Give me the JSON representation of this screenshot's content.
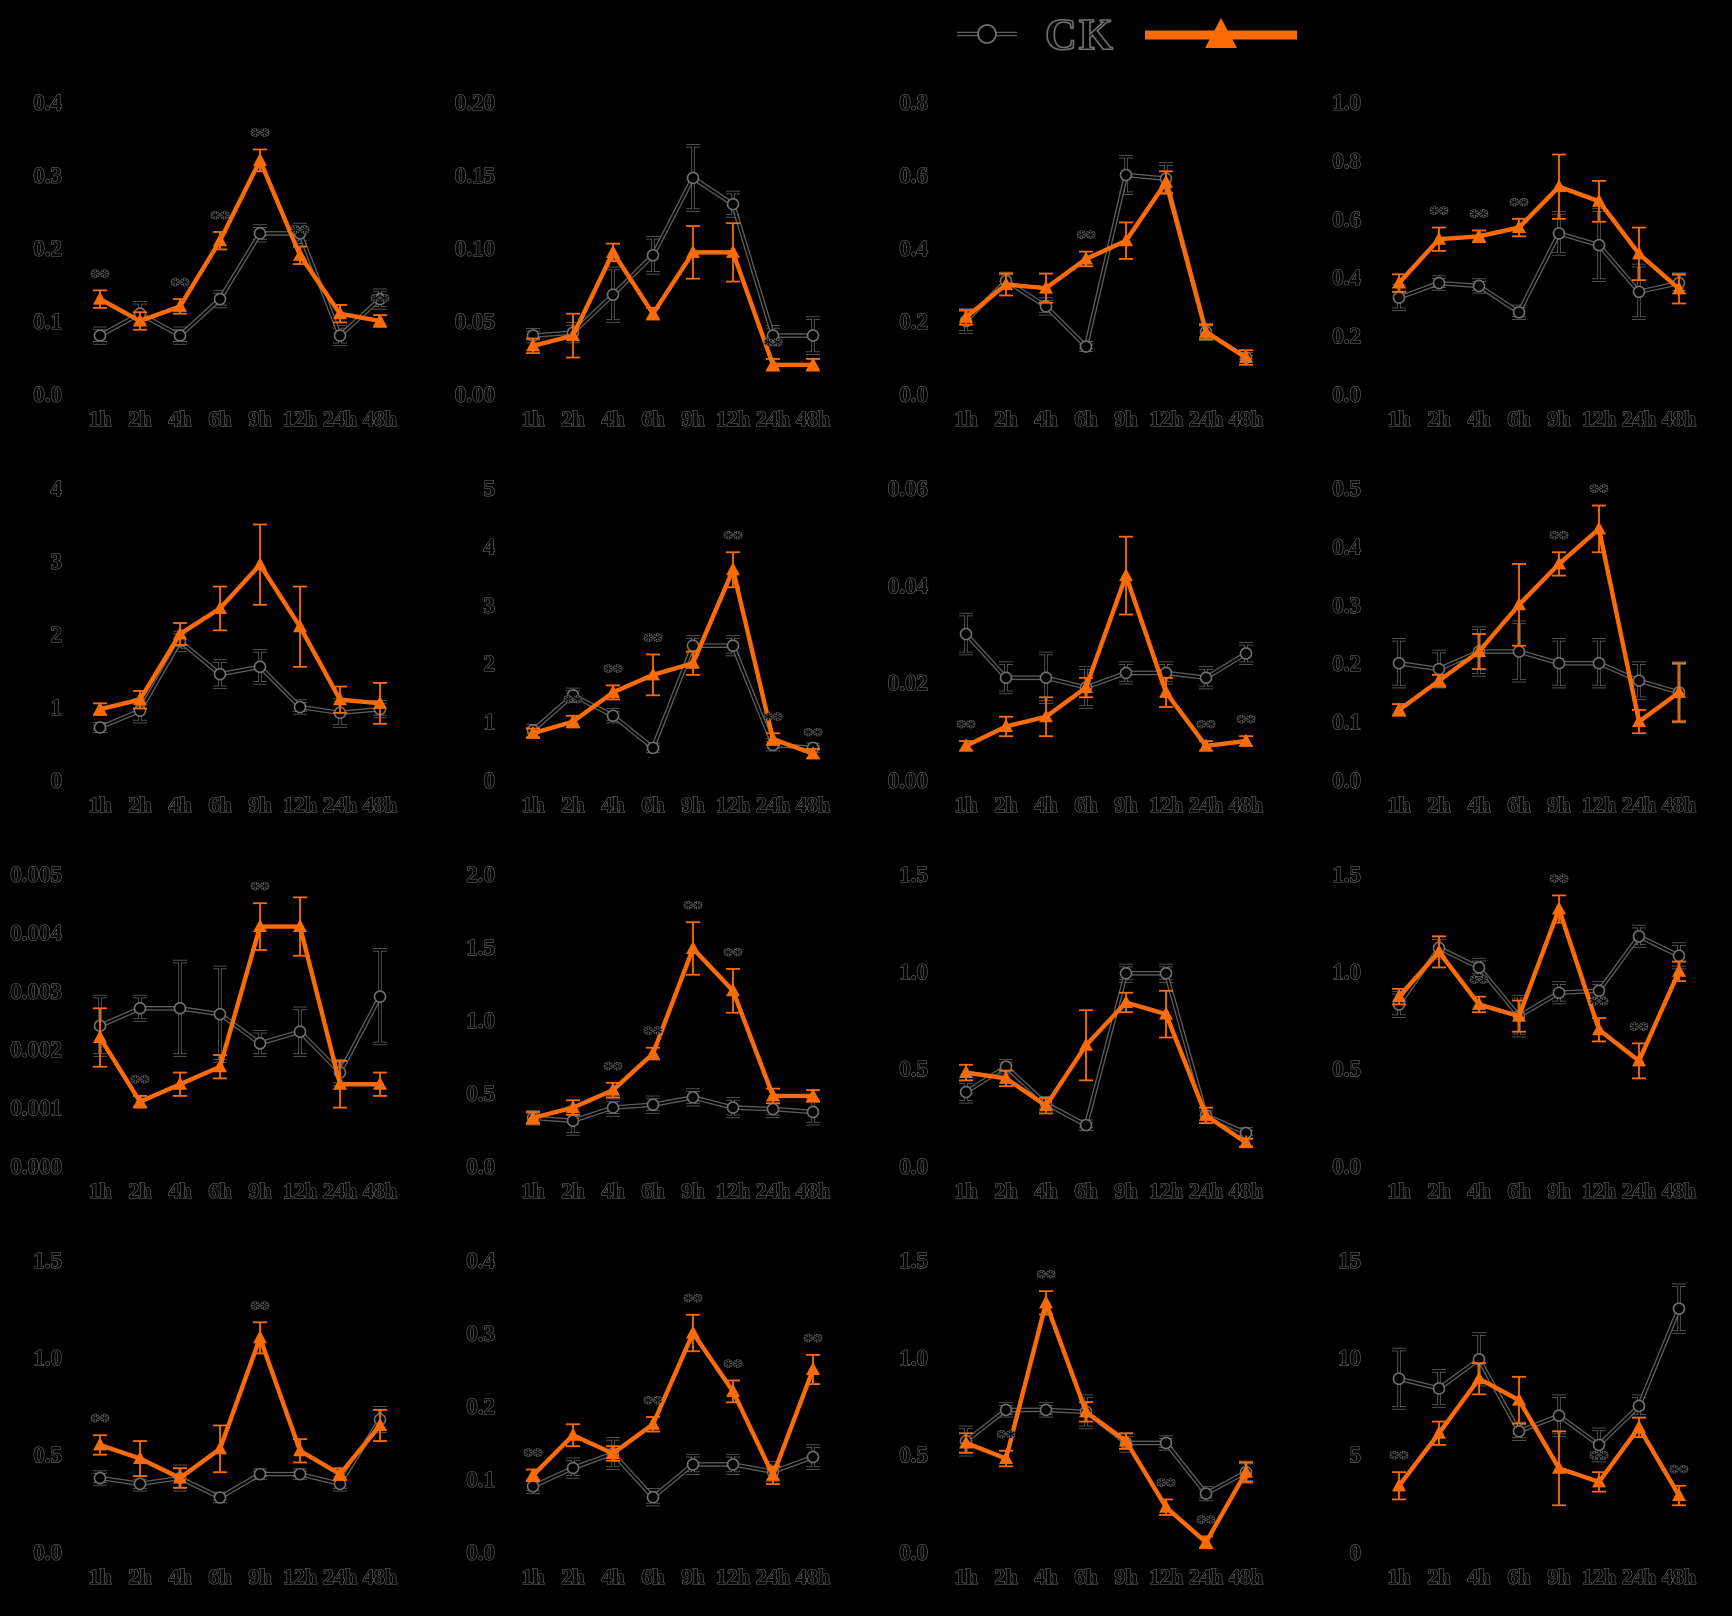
{
  "legend": {
    "ck_label": "CK",
    "treatment_label": ""
  },
  "x_categories": [
    "1h",
    "2h",
    "4h",
    "6h",
    "9h",
    "12h",
    "24h",
    "48h"
  ],
  "colors": {
    "treatment_orange": "#FB6C08",
    "ck_core": "#000000",
    "halo_gray": "#6f6f6f",
    "background": "#000000"
  },
  "sig_label": "**",
  "chart_data": [
    {
      "type": "line",
      "ylim": [
        0,
        0.4
      ],
      "yticks": [
        "0.0",
        "0.1",
        "0.2",
        "0.3",
        "0.4"
      ],
      "series": [
        {
          "name": "CK",
          "values": [
            0.08,
            0.11,
            0.08,
            0.13,
            0.22,
            0.22,
            0.08,
            0.13
          ],
          "errors": [
            0.01,
            0.015,
            0.01,
            0.01,
            0.01,
            0.012,
            0.012,
            0.012
          ]
        },
        {
          "name": "treatment",
          "values": [
            0.13,
            0.1,
            0.12,
            0.21,
            0.32,
            0.19,
            0.11,
            0.1
          ],
          "errors": [
            0.012,
            0.012,
            0.01,
            0.012,
            0.015,
            0.012,
            0.012,
            0.008
          ]
        }
      ],
      "sig_indices": [
        0,
        2,
        3,
        4,
        5,
        7
      ]
    },
    {
      "type": "line",
      "ylim": [
        0,
        0.2
      ],
      "yticks": [
        "0.00",
        "0.05",
        "0.10",
        "0.15",
        "0.20"
      ],
      "series": [
        {
          "name": "CK",
          "values": [
            0.04,
            0.042,
            0.068,
            0.095,
            0.148,
            0.13,
            0.04,
            0.04
          ],
          "errors": [
            0.004,
            0.006,
            0.018,
            0.012,
            0.022,
            0.008,
            0.006,
            0.012
          ]
        },
        {
          "name": "treatment",
          "values": [
            0.033,
            0.04,
            0.097,
            0.055,
            0.097,
            0.097,
            0.02,
            0.02
          ],
          "errors": [
            0.005,
            0.015,
            0.006,
            0.004,
            0.018,
            0.02,
            0.004,
            0.004
          ]
        }
      ],
      "sig_indices": [
        6
      ]
    },
    {
      "type": "line",
      "ylim": [
        0,
        0.8
      ],
      "yticks": [
        "0.0",
        "0.2",
        "0.4",
        "0.6",
        "0.8"
      ],
      "series": [
        {
          "name": "CK",
          "values": [
            0.2,
            0.31,
            0.24,
            0.13,
            0.6,
            0.59,
            0.17,
            0.1
          ],
          "errors": [
            0.03,
            0.02,
            0.02,
            0.01,
            0.05,
            0.04,
            0.02,
            0.01
          ]
        },
        {
          "name": "treatment",
          "values": [
            0.21,
            0.3,
            0.29,
            0.37,
            0.42,
            0.58,
            0.17,
            0.1
          ],
          "errors": [
            0.02,
            0.03,
            0.04,
            0.02,
            0.05,
            0.03,
            0.02,
            0.02
          ]
        }
      ],
      "sig_indices": [
        3
      ]
    },
    {
      "type": "line",
      "ylim": [
        0,
        1.0
      ],
      "yticks": [
        "0.0",
        "0.2",
        "0.4",
        "0.6",
        "0.8",
        "1.0"
      ],
      "series": [
        {
          "name": "CK",
          "values": [
            0.33,
            0.38,
            0.37,
            0.28,
            0.55,
            0.51,
            0.35,
            0.38
          ],
          "errors": [
            0.04,
            0.02,
            0.02,
            0.02,
            0.07,
            0.12,
            0.09,
            0.03
          ]
        },
        {
          "name": "treatment",
          "values": [
            0.38,
            0.53,
            0.54,
            0.57,
            0.71,
            0.66,
            0.48,
            0.36
          ],
          "errors": [
            0.03,
            0.04,
            0.02,
            0.03,
            0.11,
            0.07,
            0.09,
            0.05
          ]
        }
      ],
      "sig_indices": [
        1,
        2,
        3
      ]
    },
    {
      "type": "line",
      "ylim": [
        0,
        4
      ],
      "yticks": [
        "0",
        "1",
        "2",
        "3",
        "4"
      ],
      "series": [
        {
          "name": "CK",
          "values": [
            0.72,
            0.95,
            1.9,
            1.45,
            1.55,
            1.0,
            0.92,
            0.97
          ],
          "errors": [
            0.05,
            0.15,
            0.12,
            0.18,
            0.22,
            0.08,
            0.18,
            0.1
          ]
        },
        {
          "name": "treatment",
          "values": [
            0.97,
            1.1,
            2.0,
            2.35,
            2.95,
            2.1,
            1.1,
            1.05
          ],
          "errors": [
            0.08,
            0.12,
            0.15,
            0.3,
            0.55,
            0.55,
            0.18,
            0.28
          ]
        }
      ],
      "sig_indices": []
    },
    {
      "type": "line",
      "ylim": [
        0,
        5
      ],
      "yticks": [
        "0",
        "1",
        "2",
        "3",
        "4",
        "5"
      ],
      "series": [
        {
          "name": "CK",
          "values": [
            0.85,
            1.45,
            1.1,
            0.55,
            2.3,
            2.3,
            0.6,
            0.55
          ],
          "errors": [
            0.08,
            0.1,
            0.1,
            0.06,
            0.15,
            0.15,
            0.08,
            0.06
          ]
        },
        {
          "name": "treatment",
          "values": [
            0.8,
            1.0,
            1.5,
            1.8,
            2.0,
            3.6,
            0.7,
            0.45
          ],
          "errors": [
            0.08,
            0.1,
            0.12,
            0.35,
            0.2,
            0.3,
            0.1,
            0.08
          ]
        }
      ],
      "sig_indices": [
        1,
        2,
        3,
        5,
        6,
        7
      ]
    },
    {
      "type": "line",
      "ylim": [
        0,
        0.06
      ],
      "yticks": [
        "0.00",
        "0.02",
        "0.04",
        "0.06"
      ],
      "series": [
        {
          "name": "CK",
          "values": [
            0.03,
            0.021,
            0.021,
            0.019,
            0.022,
            0.022,
            0.021,
            0.026
          ],
          "errors": [
            0.004,
            0.003,
            0.005,
            0.004,
            0.002,
            0.002,
            0.002,
            0.002
          ]
        },
        {
          "name": "treatment",
          "values": [
            0.007,
            0.011,
            0.013,
            0.019,
            0.042,
            0.018,
            0.007,
            0.008
          ],
          "errors": [
            0.001,
            0.002,
            0.004,
            0.002,
            0.008,
            0.003,
            0.001,
            0.001
          ]
        }
      ],
      "sig_indices": [
        0,
        6,
        7
      ]
    },
    {
      "type": "line",
      "ylim": [
        0,
        0.5
      ],
      "yticks": [
        "0.0",
        "0.1",
        "0.2",
        "0.3",
        "0.4",
        "0.5"
      ],
      "series": [
        {
          "name": "CK",
          "values": [
            0.2,
            0.19,
            0.22,
            0.22,
            0.2,
            0.2,
            0.17,
            0.15
          ],
          "errors": [
            0.04,
            0.03,
            0.04,
            0.05,
            0.04,
            0.04,
            0.03,
            0.05
          ]
        },
        {
          "name": "treatment",
          "values": [
            0.12,
            0.17,
            0.22,
            0.3,
            0.37,
            0.43,
            0.1,
            0.15
          ],
          "errors": [
            0.01,
            0.01,
            0.03,
            0.07,
            0.02,
            0.04,
            0.02,
            0.05
          ]
        }
      ],
      "sig_indices": [
        4,
        5
      ]
    },
    {
      "type": "line",
      "ylim": [
        0,
        0.005
      ],
      "yticks": [
        "0.000",
        "0.001",
        "0.002",
        "0.003",
        "0.004",
        "0.005"
      ],
      "series": [
        {
          "name": "CK",
          "values": [
            0.0024,
            0.0027,
            0.0027,
            0.0026,
            0.0021,
            0.0023,
            0.0016,
            0.0029
          ],
          "errors": [
            0.0005,
            0.0002,
            0.0008,
            0.0008,
            0.0002,
            0.0004,
            0.0002,
            0.0008
          ]
        },
        {
          "name": "treatment",
          "values": [
            0.0022,
            0.0011,
            0.0014,
            0.0017,
            0.0041,
            0.0041,
            0.0014,
            0.0014
          ],
          "errors": [
            0.0005,
            0.0001,
            0.0002,
            0.0002,
            0.0004,
            0.0005,
            0.0004,
            0.0002
          ]
        }
      ],
      "sig_indices": [
        1,
        4
      ]
    },
    {
      "type": "line",
      "ylim": [
        0,
        2.0
      ],
      "yticks": [
        "0.0",
        "0.5",
        "1.0",
        "1.5",
        "2.0"
      ],
      "series": [
        {
          "name": "CK",
          "values": [
            0.33,
            0.31,
            0.4,
            0.42,
            0.47,
            0.4,
            0.39,
            0.37
          ],
          "errors": [
            0.04,
            0.09,
            0.05,
            0.05,
            0.05,
            0.06,
            0.05,
            0.08
          ]
        },
        {
          "name": "treatment",
          "values": [
            0.33,
            0.4,
            0.52,
            0.77,
            1.49,
            1.2,
            0.48,
            0.48
          ],
          "errors": [
            0.04,
            0.05,
            0.05,
            0.04,
            0.18,
            0.15,
            0.05,
            0.04
          ]
        }
      ],
      "sig_indices": [
        2,
        3,
        4,
        5
      ]
    },
    {
      "type": "line",
      "ylim": [
        0,
        1.5
      ],
      "yticks": [
        "0.0",
        "0.5",
        "1.0",
        "1.5"
      ],
      "series": [
        {
          "name": "CK",
          "values": [
            0.38,
            0.51,
            0.32,
            0.21,
            0.99,
            0.99,
            0.26,
            0.17
          ],
          "errors": [
            0.05,
            0.03,
            0.03,
            0.02,
            0.04,
            0.04,
            0.03,
            0.02
          ]
        },
        {
          "name": "treatment",
          "values": [
            0.48,
            0.45,
            0.31,
            0.62,
            0.84,
            0.78,
            0.26,
            0.12
          ],
          "errors": [
            0.04,
            0.04,
            0.04,
            0.18,
            0.05,
            0.12,
            0.04,
            0.02
          ]
        }
      ],
      "sig_indices": []
    },
    {
      "type": "line",
      "ylim": [
        0,
        1.5
      ],
      "yticks": [
        "0.0",
        "0.5",
        "1.0",
        "1.5"
      ],
      "series": [
        {
          "name": "CK",
          "values": [
            0.83,
            1.12,
            1.02,
            0.77,
            0.89,
            0.9,
            1.18,
            1.08
          ],
          "errors": [
            0.06,
            0.05,
            0.04,
            0.1,
            0.05,
            0.04,
            0.05,
            0.06
          ]
        },
        {
          "name": "treatment",
          "values": [
            0.87,
            1.1,
            0.83,
            0.77,
            1.32,
            0.7,
            0.54,
            1.0
          ],
          "errors": [
            0.04,
            0.08,
            0.04,
            0.08,
            0.07,
            0.06,
            0.09,
            0.05
          ]
        }
      ],
      "sig_indices": [
        2,
        4,
        5,
        6
      ]
    },
    {
      "type": "line",
      "ylim": [
        0,
        1.5
      ],
      "yticks": [
        "0.0",
        "0.5",
        "1.0",
        "1.5"
      ],
      "series": [
        {
          "name": "CK",
          "values": [
            0.38,
            0.35,
            0.38,
            0.28,
            0.4,
            0.4,
            0.35,
            0.68
          ],
          "errors": [
            0.03,
            0.03,
            0.06,
            0.02,
            0.02,
            0.02,
            0.03,
            0.06
          ]
        },
        {
          "name": "treatment",
          "values": [
            0.55,
            0.48,
            0.38,
            0.53,
            1.1,
            0.52,
            0.4,
            0.65
          ],
          "errors": [
            0.05,
            0.09,
            0.05,
            0.12,
            0.08,
            0.06,
            0.03,
            0.08
          ]
        }
      ],
      "sig_indices": [
        0,
        4
      ]
    },
    {
      "type": "line",
      "ylim": [
        0,
        0.4
      ],
      "yticks": [
        "0.0",
        "0.1",
        "0.2",
        "0.3",
        "0.4"
      ],
      "series": [
        {
          "name": "CK",
          "values": [
            0.09,
            0.115,
            0.135,
            0.075,
            0.12,
            0.12,
            0.11,
            0.13
          ],
          "errors": [
            0.008,
            0.012,
            0.02,
            0.01,
            0.012,
            0.012,
            0.012,
            0.015
          ]
        },
        {
          "name": "treatment",
          "values": [
            0.105,
            0.16,
            0.135,
            0.175,
            0.3,
            0.22,
            0.105,
            0.25
          ],
          "errors": [
            0.008,
            0.015,
            0.01,
            0.01,
            0.025,
            0.015,
            0.012,
            0.02
          ]
        }
      ],
      "sig_indices": [
        0,
        3,
        4,
        5,
        7
      ]
    },
    {
      "type": "line",
      "ylim": [
        0,
        1.5
      ],
      "yticks": [
        "0.0",
        "0.5",
        "1.0",
        "1.5"
      ],
      "series": [
        {
          "name": "CK",
          "values": [
            0.57,
            0.73,
            0.73,
            0.72,
            0.56,
            0.56,
            0.3,
            0.41
          ],
          "errors": [
            0.07,
            0.03,
            0.03,
            0.08,
            0.04,
            0.03,
            0.03,
            0.05
          ]
        },
        {
          "name": "treatment",
          "values": [
            0.56,
            0.48,
            1.28,
            0.72,
            0.57,
            0.23,
            0.05,
            0.41
          ],
          "errors": [
            0.05,
            0.04,
            0.06,
            0.05,
            0.04,
            0.04,
            0.03,
            0.05
          ]
        }
      ],
      "sig_indices": [
        1,
        2,
        5,
        6
      ]
    },
    {
      "type": "line",
      "ylim": [
        0,
        15
      ],
      "yticks": [
        "0",
        "5",
        "10",
        "15"
      ],
      "series": [
        {
          "name": "CK",
          "values": [
            8.9,
            8.4,
            9.9,
            6.2,
            7.0,
            5.5,
            7.5,
            12.5
          ],
          "errors": [
            1.5,
            0.9,
            1.3,
            0.4,
            1.0,
            0.8,
            0.5,
            1.2
          ]
        },
        {
          "name": "treatment",
          "values": [
            3.4,
            6.1,
            8.9,
            7.8,
            4.3,
            3.6,
            6.4,
            2.9
          ],
          "errors": [
            0.7,
            0.6,
            0.8,
            1.2,
            1.9,
            0.5,
            0.5,
            0.5
          ]
        }
      ],
      "sig_indices": [
        0,
        5,
        7
      ]
    }
  ]
}
